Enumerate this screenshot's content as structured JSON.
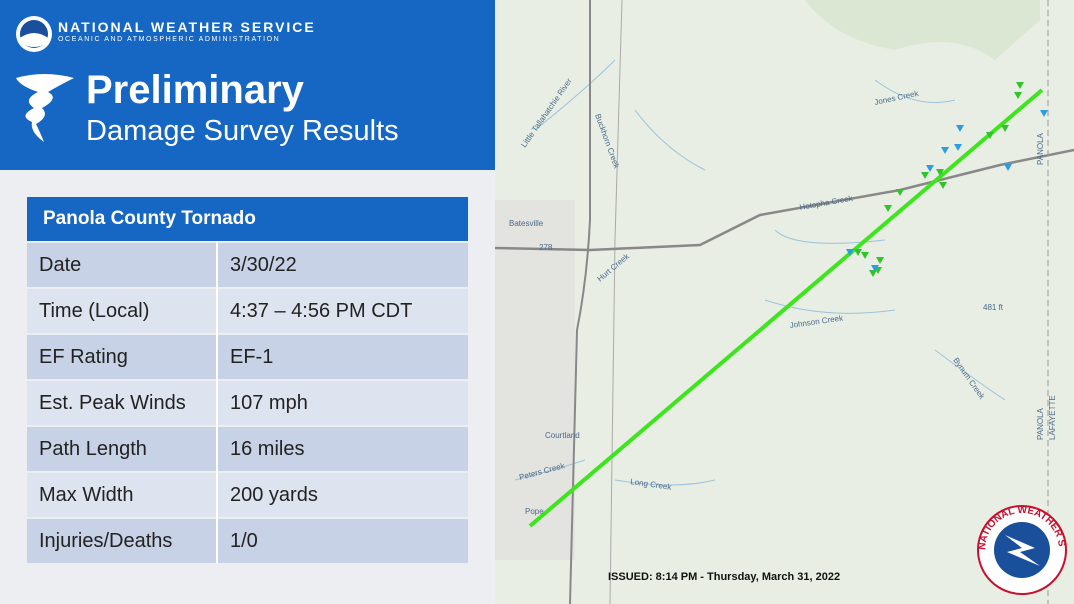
{
  "header": {
    "agency": "NATIONAL WEATHER SERVICE",
    "agency_sub": "OCEANIC AND ATMOSPHERIC ADMINISTRATION",
    "title_line1": "Preliminary",
    "title_line2": "Damage Survey Results"
  },
  "table": {
    "title": "Panola County Tornado",
    "rows": [
      [
        "Date",
        "3/30/22"
      ],
      [
        "Time (Local)",
        "4:37 – 4:56 PM CDT"
      ],
      [
        "EF Rating",
        "EF-1"
      ],
      [
        "Est. Peak Winds",
        "107 mph"
      ],
      [
        "Path Length",
        "16 miles"
      ],
      [
        "Max Width",
        "200 yards"
      ],
      [
        "Injuries/Deaths",
        "1/0"
      ]
    ]
  },
  "map": {
    "labels": [
      "Little Tallahatchie River",
      "Buckhorn Creek",
      "Jones Creek",
      "Batesville",
      "278",
      "Hotopha Creek",
      "Hurt Creek",
      "Johnson Creek",
      "481 ft",
      "Bynum Creek",
      "Courtland",
      "Peters Creek",
      "Long Creek",
      "Pope",
      "PANOLA",
      "PANOLA",
      "LAFAYETTE"
    ],
    "issued": "ISSUED: 8:14 PM - Thursday, March 31, 2022",
    "logo": "NATIONAL WEATHER SERVICE"
  }
}
